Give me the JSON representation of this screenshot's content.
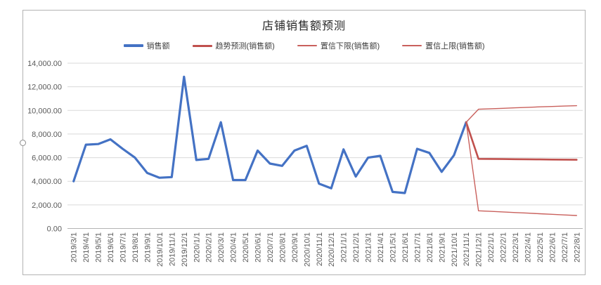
{
  "window": {
    "background": "#ffffff",
    "chart_border_color": "#b3b3b3"
  },
  "chart": {
    "title": "店铺销售额预测"
  },
  "legend": {
    "items": [
      {
        "label": "销售额",
        "color": "#4472C4"
      },
      {
        "label": "趋势预测(销售额)",
        "color": "#C0504D"
      },
      {
        "label": "置信下限(销售额)",
        "color": "#C9605C"
      },
      {
        "label": "置信上限(销售额)",
        "color": "#C9605C"
      }
    ]
  },
  "chart_data": {
    "type": "line",
    "title": "店铺销售额预测",
    "xlabel": "",
    "ylabel": "",
    "ylim": [
      0,
      14000
    ],
    "y_tick_interval": 2000,
    "y_tick_labels": [
      "0.00",
      "2,000.00",
      "4,000.00",
      "6,000.00",
      "8,000.00",
      "10,000.00",
      "12,000.00",
      "14,000.00"
    ],
    "grid": true,
    "legend_position": "top",
    "axis_color": "#b3b3b3",
    "grid_color": "#d9d9d9",
    "tick_label_color": "#595959",
    "categories": [
      "2019/3/1",
      "2019/4/1",
      "2019/5/1",
      "2019/6/1",
      "2019/7/1",
      "2019/8/1",
      "2019/9/1",
      "2019/10/1",
      "2019/11/1",
      "2019/12/1",
      "2020/1/1",
      "2020/2/1",
      "2020/3/1",
      "2020/4/1",
      "2020/5/1",
      "2020/6/1",
      "2020/7/1",
      "2020/8/1",
      "2020/9/1",
      "2020/10/1",
      "2020/11/1",
      "2020/12/1",
      "2021/1/1",
      "2021/2/1",
      "2021/3/1",
      "2021/4/1",
      "2021/5/1",
      "2021/6/1",
      "2021/7/1",
      "2021/8/1",
      "2021/9/1",
      "2021/10/1",
      "2021/11/1",
      "2021/12/1",
      "2022/1/1",
      "2022/2/1",
      "2022/3/1",
      "2022/4/1",
      "2022/5/1",
      "2022/6/1",
      "2022/7/1",
      "2022/8/1"
    ],
    "series": [
      {
        "name": "销售额",
        "color": "#4472C4",
        "line_width": 3.2,
        "start_index": 0,
        "values": [
          4000,
          7100,
          7150,
          7550,
          6750,
          6000,
          4700,
          4300,
          4350,
          12850,
          5800,
          5900,
          9000,
          4100,
          4100,
          6600,
          5500,
          5300,
          6600,
          7000,
          3800,
          3400,
          6700,
          4400,
          6000,
          6150,
          3100,
          3000,
          6750,
          6400,
          4800,
          6200,
          9000
        ]
      },
      {
        "name": "趋势预测(销售额)",
        "color": "#C0504D",
        "line_width": 2.6,
        "start_index": 32,
        "values": [
          9000,
          5900,
          5890,
          5880,
          5870,
          5860,
          5850,
          5840,
          5830,
          5820
        ]
      },
      {
        "name": "置信下限(销售额)",
        "color": "#C9605C",
        "line_width": 1.4,
        "start_index": 32,
        "values": [
          9000,
          1500,
          1450,
          1400,
          1350,
          1300,
          1250,
          1200,
          1150,
          1100
        ]
      },
      {
        "name": "置信上限(销售额)",
        "color": "#C9605C",
        "line_width": 1.4,
        "start_index": 32,
        "values": [
          9000,
          10100,
          10140,
          10180,
          10220,
          10260,
          10300,
          10330,
          10370,
          10400
        ]
      }
    ]
  }
}
